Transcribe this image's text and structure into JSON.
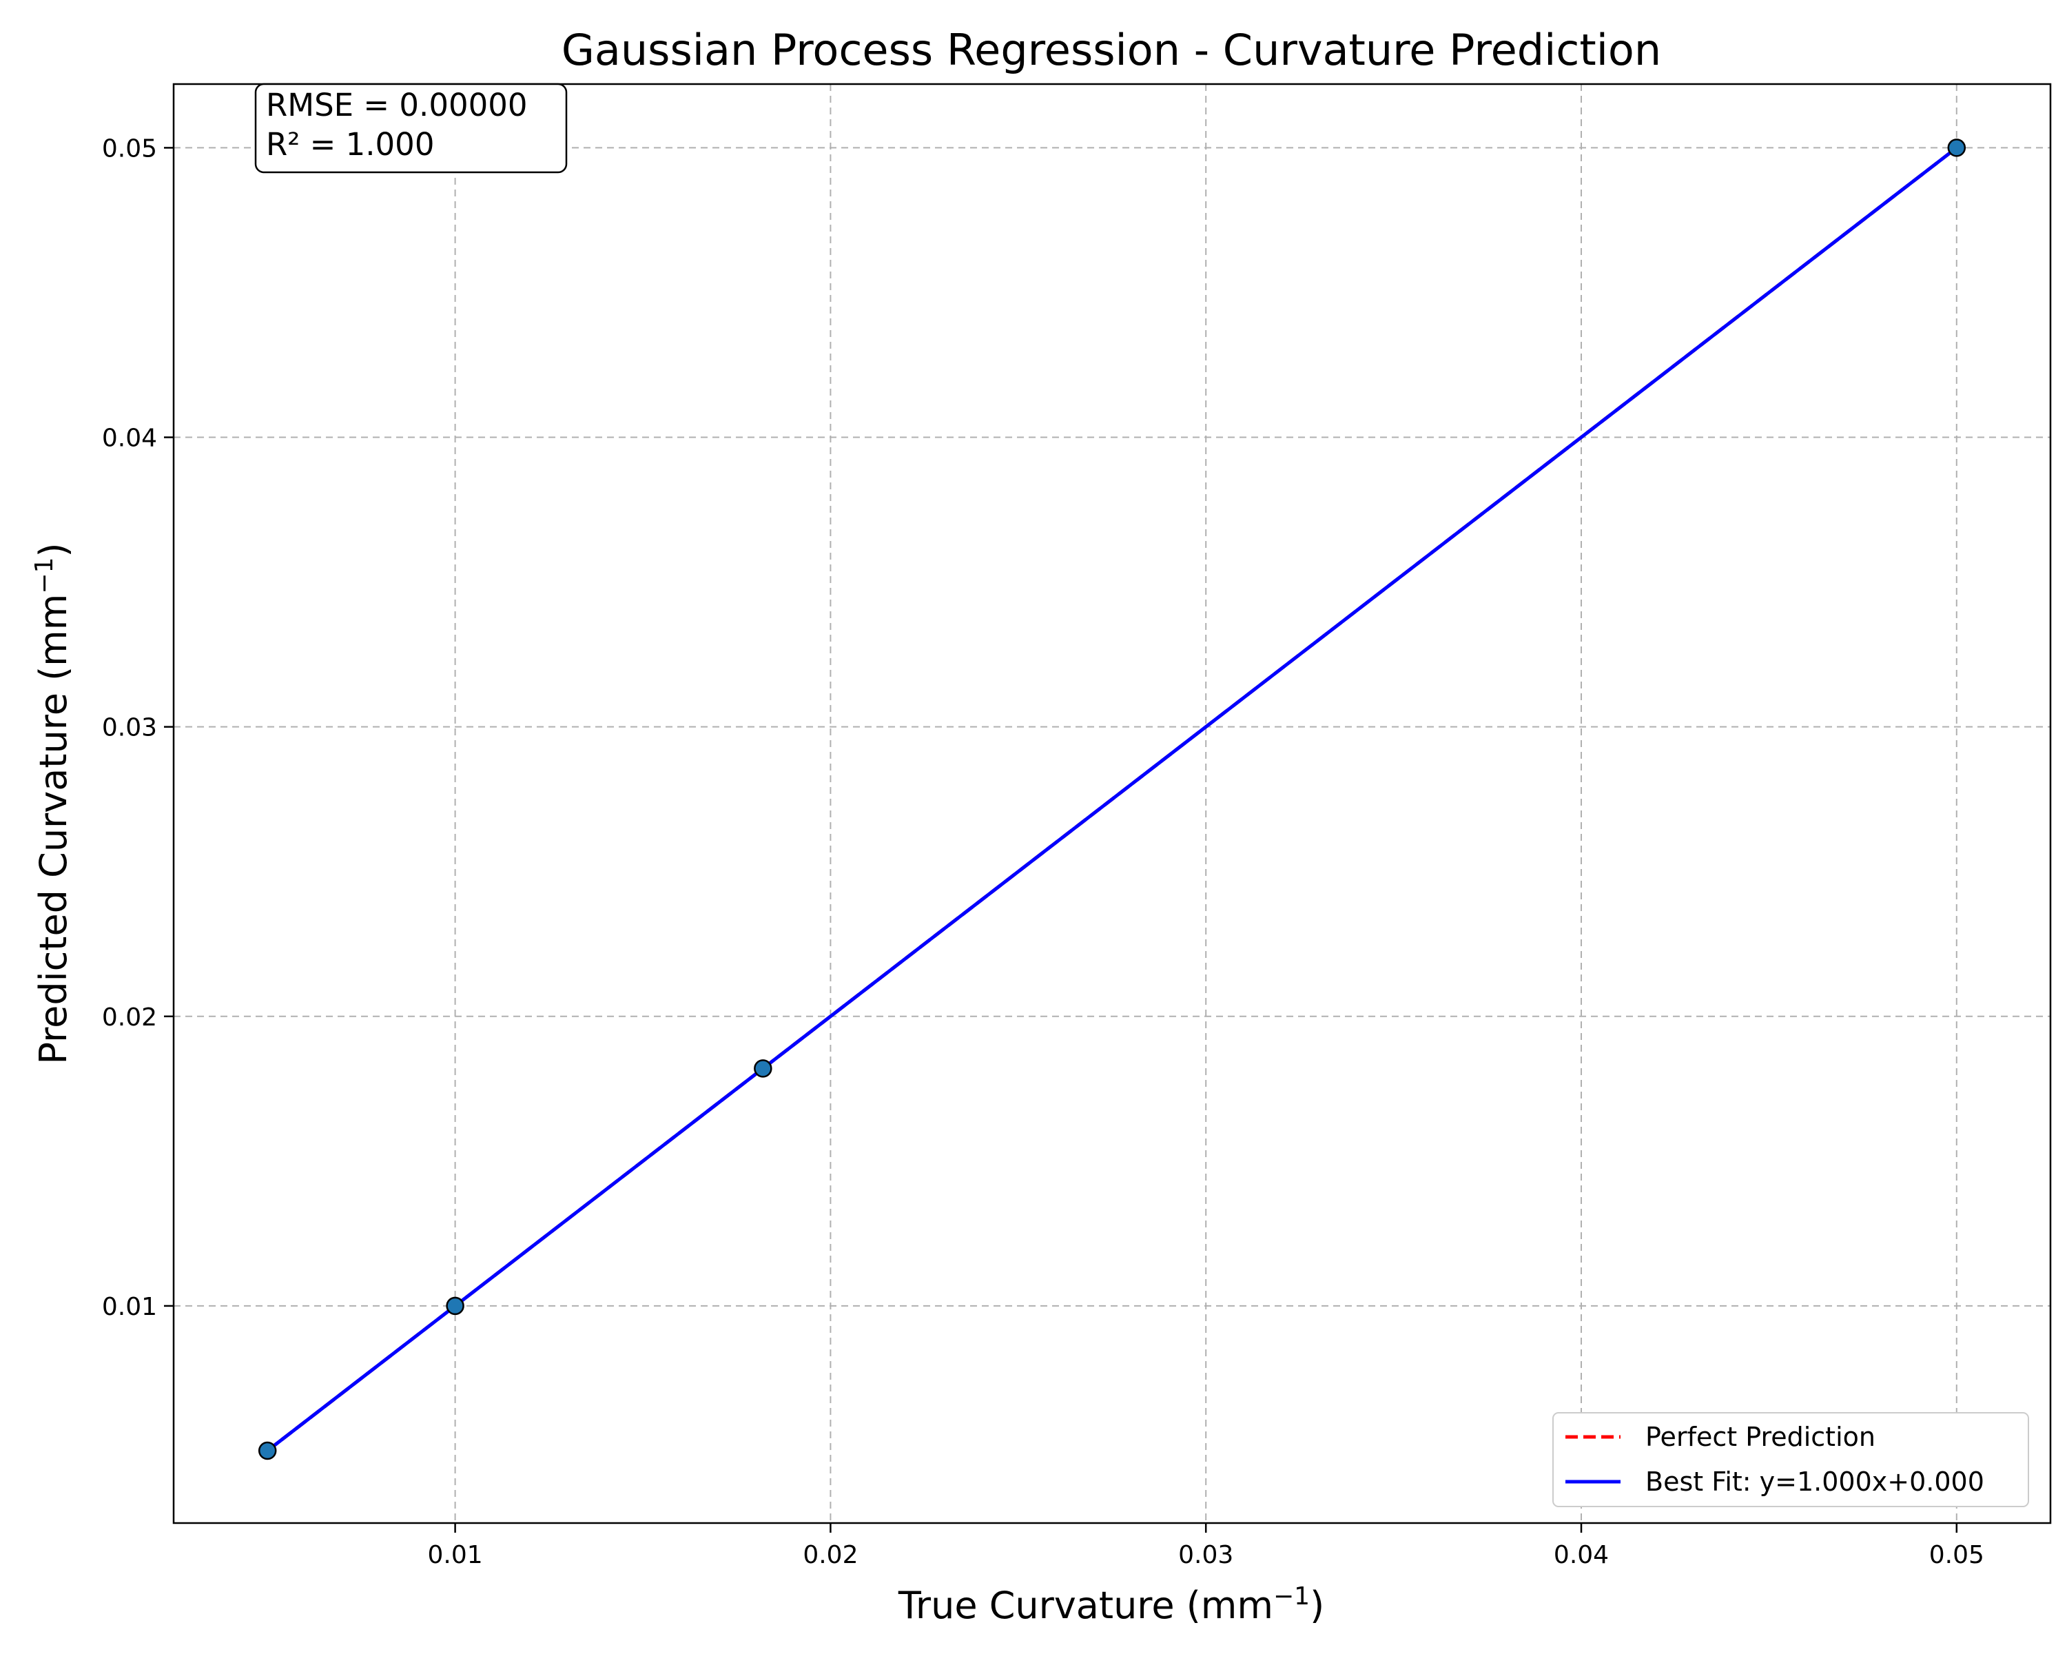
{
  "chart_data": {
    "type": "scatter",
    "title": "Gaussian Process Regression - Curvature Prediction",
    "xlabel": "True Curvature (mm",
    "xlabel_sup": "−1",
    "xlabel_end": ")",
    "ylabel": "Predicted Curvature (mm",
    "ylabel_sup": "−1",
    "ylabel_end": ")",
    "xlim": [
      0.0025,
      0.0525
    ],
    "ylim": [
      0.0025,
      0.0522
    ],
    "xticks": [
      0.01,
      0.02,
      0.03,
      0.04,
      0.05
    ],
    "xtick_labels": [
      "0.01",
      "0.02",
      "0.03",
      "0.04",
      "0.05"
    ],
    "yticks": [
      0.01,
      0.02,
      0.03,
      0.04,
      0.05
    ],
    "ytick_labels": [
      "0.01",
      "0.02",
      "0.03",
      "0.04",
      "0.05"
    ],
    "grid": true,
    "points": {
      "x": [
        0.005,
        0.01,
        0.0182,
        0.05
      ],
      "y": [
        0.005,
        0.01,
        0.0182,
        0.05
      ],
      "color": "#1f77b4",
      "edgecolor": "#000000"
    },
    "series": [
      {
        "name": "Perfect Prediction",
        "style": "dashed",
        "color": "#ff0000",
        "x": [
          0.005,
          0.05
        ],
        "y": [
          0.005,
          0.05
        ]
      },
      {
        "name": "Best Fit: y=1.000x+0.000",
        "style": "solid",
        "color": "#0000ff",
        "x": [
          0.005,
          0.05
        ],
        "y": [
          0.005,
          0.05
        ]
      }
    ],
    "annotation": {
      "lines": [
        "RMSE = 0.00000",
        "R² = 1.000"
      ]
    },
    "legend_position": "lower-right"
  }
}
